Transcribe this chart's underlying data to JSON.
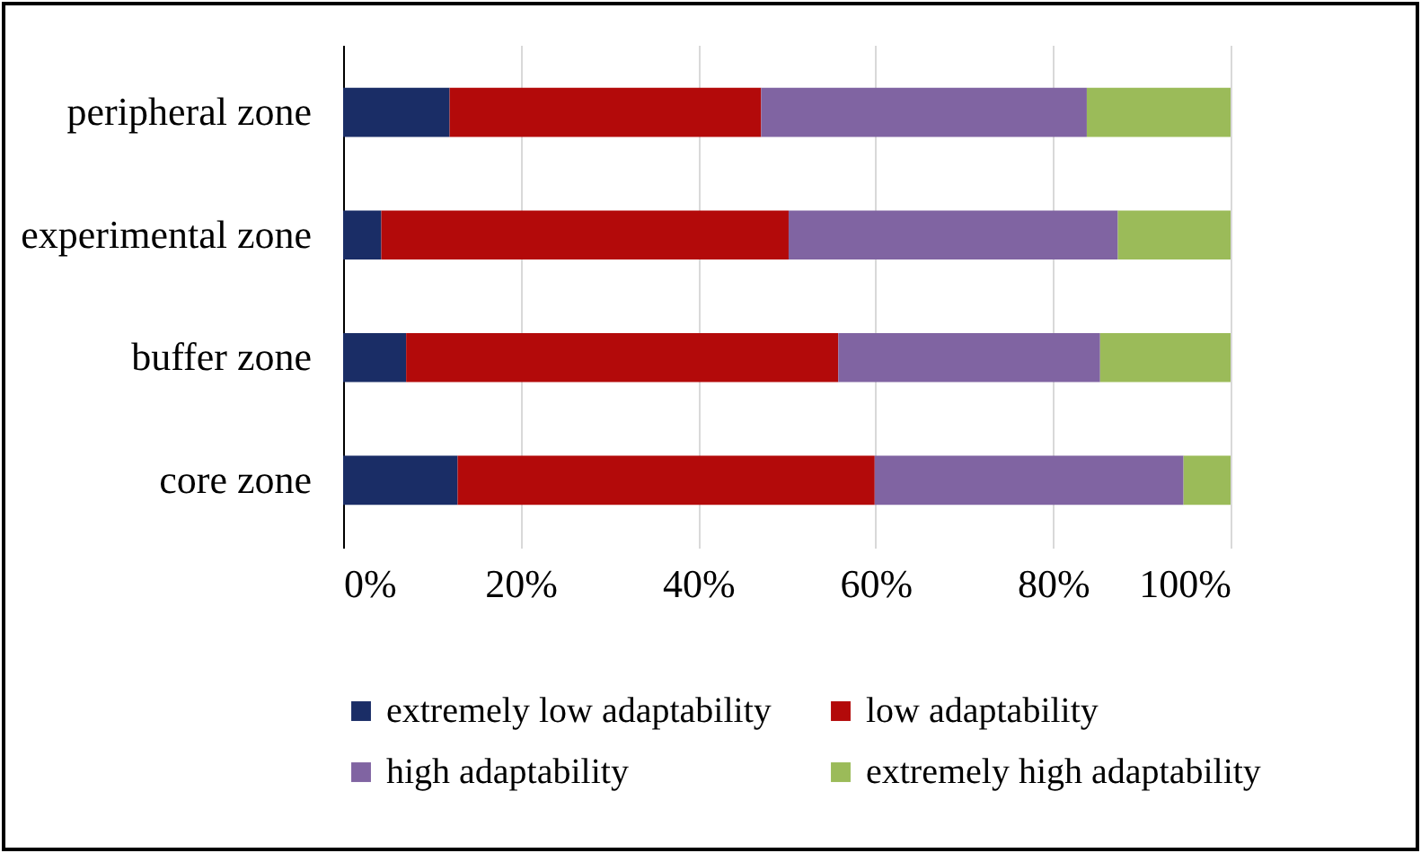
{
  "chart_data": {
    "type": "bar",
    "orientation": "horizontal",
    "stacked": true,
    "categories": [
      "peripheral zone",
      "experimental zone",
      "buffer zone",
      "core zone"
    ],
    "series": [
      {
        "name": "extremely low adaptability",
        "color": "#1a2d66",
        "values": [
          12.0,
          4.3,
          7.1,
          12.9
        ]
      },
      {
        "name": "low adaptability",
        "color": "#b30a0a",
        "values": [
          35.1,
          45.9,
          48.7,
          47.0
        ]
      },
      {
        "name": "high adaptability",
        "color": "#8064a2",
        "values": [
          36.7,
          37.1,
          29.5,
          34.8
        ]
      },
      {
        "name": "extremely high adaptability",
        "color": "#9bbb59",
        "values": [
          16.2,
          12.7,
          14.7,
          5.3
        ]
      }
    ],
    "xlim": [
      0,
      100
    ],
    "xticks": [
      {
        "value": 0,
        "label": "0%"
      },
      {
        "value": 20,
        "label": "20%"
      },
      {
        "value": 40,
        "label": "40%"
      },
      {
        "value": 60,
        "label": "60%"
      },
      {
        "value": 80,
        "label": "80%"
      },
      {
        "value": 100,
        "label": "100%"
      }
    ],
    "grid": "x",
    "legend": "bottom"
  }
}
